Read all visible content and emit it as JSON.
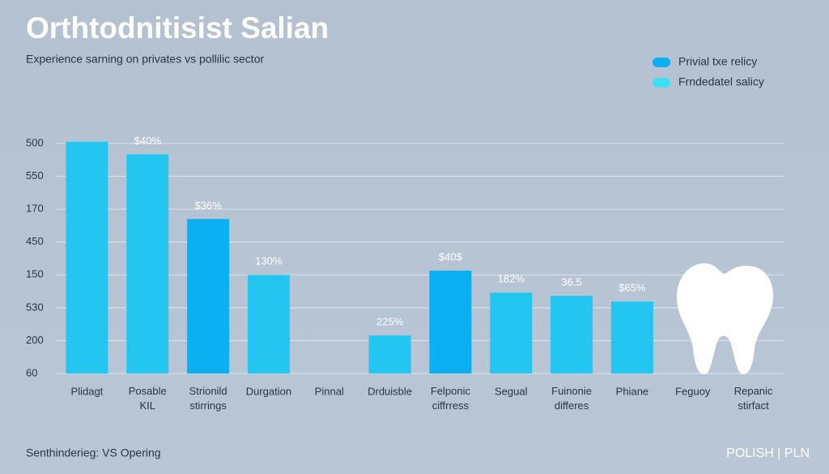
{
  "chart_data": {
    "type": "bar",
    "title": "Orthtodnitisist Salian",
    "subtitle": "Experience sarning on privates vs pollilic sector",
    "footer_left": "Senthinderieg: VS Opering",
    "footer_right": "POLISH | PLN",
    "categories": [
      "Plidagt",
      "Posable KIL",
      "Strionild stirrings",
      "Durgation",
      "Pinnal",
      "Drduisble",
      "Felponic ciffrress",
      "Segual",
      "Fuinonie differes",
      "Phiane",
      "Feguoy",
      "Repanic stirfact"
    ],
    "series": [
      {
        "name": "Privial txe relicy",
        "color": "#0ab0f2",
        "values": [
          null,
          null,
          4.7,
          null,
          null,
          null,
          3.13,
          null,
          null,
          null,
          null,
          null
        ],
        "value_labels": [
          null,
          null,
          "$36%",
          null,
          null,
          null,
          "$40$",
          null,
          null,
          null,
          null,
          null
        ]
      },
      {
        "name": "Frndedatel salicy",
        "color": "#22c6f0",
        "values": [
          7.05,
          6.67,
          null,
          3.0,
          null,
          1.16,
          null,
          2.46,
          2.36,
          2.19,
          null,
          null
        ],
        "value_labels": [
          null,
          "$40%",
          null,
          "130%",
          null,
          "225%",
          null,
          "182%",
          "36.5",
          "$65%",
          null,
          null
        ]
      }
    ],
    "legend_colors": [
      "#0ab0f2",
      "#3ee0f0"
    ],
    "ylim": [
      0,
      7
    ],
    "yticks": [
      {
        "value": 0,
        "label": "60"
      },
      {
        "value": 1,
        "label": "200"
      },
      {
        "value": 2,
        "label": "530"
      },
      {
        "value": 3,
        "label": "150"
      },
      {
        "value": 4,
        "label": "450"
      },
      {
        "value": 5,
        "label": "170"
      },
      {
        "value": 6,
        "label": "550"
      },
      {
        "value": 7,
        "label": "500"
      }
    ],
    "grid": true,
    "legend": "top-right"
  }
}
